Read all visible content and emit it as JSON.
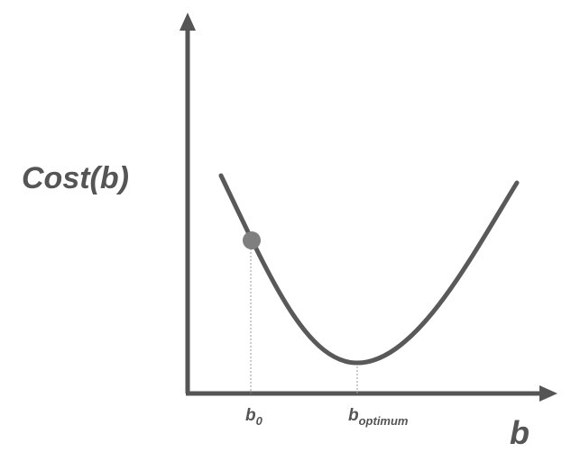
{
  "axes": {
    "y_label": "Cost(b)",
    "x_label": "b"
  },
  "ticks": {
    "b0": {
      "base": "b",
      "subscript": "0"
    },
    "b_optimum": {
      "base": "b",
      "subscript": "optimum"
    }
  },
  "colors": {
    "axis": "#555555",
    "curve": "#595959",
    "marker": "#7f7f7f",
    "guide": "#9a9a9a"
  }
}
